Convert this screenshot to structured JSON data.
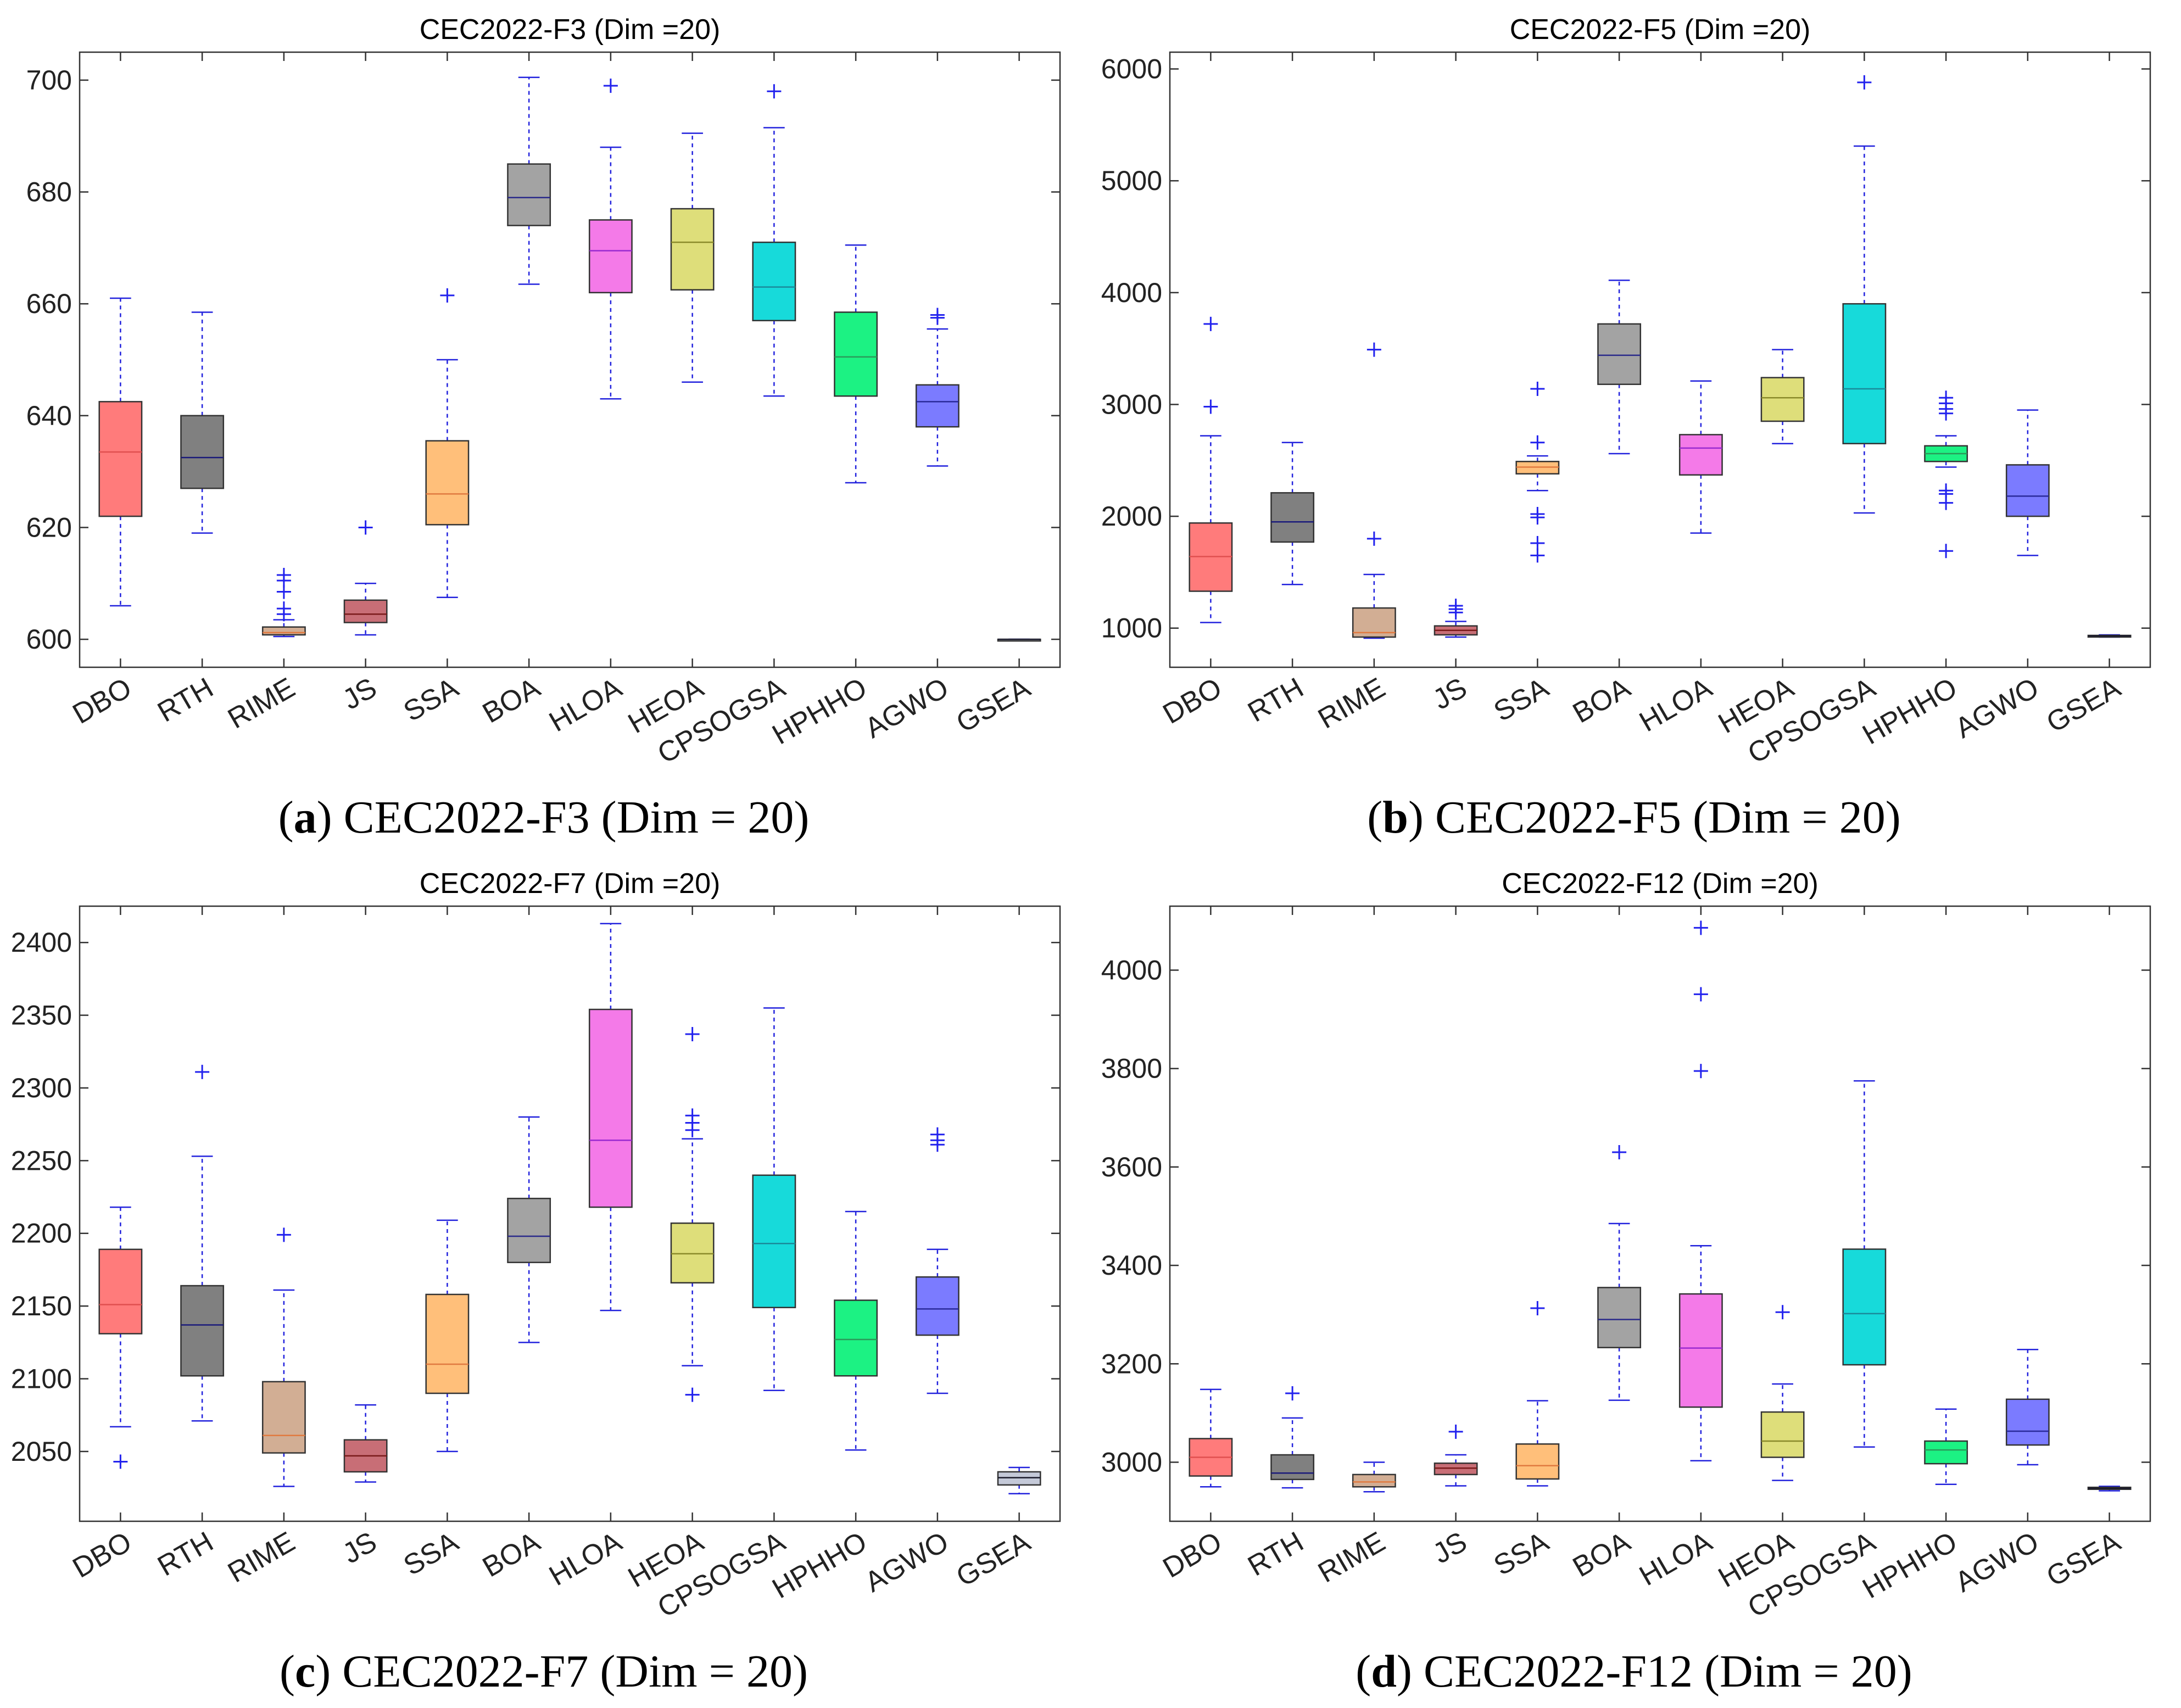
{
  "captions": [
    {
      "label": "a",
      "text": "CEC2022-F3 (Dim = 20)"
    },
    {
      "label": "b",
      "text": "CEC2022-F5 (Dim = 20)"
    },
    {
      "label": "c",
      "text": "CEC2022-F7 (Dim = 20)"
    },
    {
      "label": "d",
      "text": "CEC2022-F12 (Dim = 20)"
    }
  ],
  "chart_data": [
    {
      "type": "box",
      "title": "CEC2022-F3 (Dim =20)",
      "xlabel": "",
      "ylabel": "",
      "ylim": [
        595,
        705
      ],
      "yticks": [
        600,
        620,
        640,
        660,
        680,
        700
      ],
      "categories": [
        "DBO",
        "RTH",
        "RIME",
        "JS",
        "SSA",
        "BOA",
        "HLOA",
        "HEOA",
        "CPSOGSA",
        "HPHHO",
        "AGWO",
        "GSEA"
      ],
      "colors": [
        "#ff7b7b",
        "#808080",
        "#d2ae94",
        "#c86e76",
        "#ffbf7a",
        "#a3a3a3",
        "#f47ae8",
        "#dede7a",
        "#17dada",
        "#1cf283",
        "#7b7bff",
        "#c4c9d8"
      ],
      "median_colors": [
        "#e05050",
        "#1a1a7a",
        "#e07a40",
        "#7a1a1a",
        "#e07a40",
        "#2a2a8a",
        "#9a2ad0",
        "#8a8a2a",
        "#1a8a9a",
        "#2a9a5a",
        "#2a2a9a",
        "#1a1a2a"
      ],
      "boxes": [
        {
          "whisker_low": 606,
          "q1": 622,
          "median": 633.5,
          "q3": 642.5,
          "whisker_high": 661,
          "outliers": []
        },
        {
          "whisker_low": 619,
          "q1": 627,
          "median": 632.5,
          "q3": 640,
          "whisker_high": 658.5,
          "outliers": []
        },
        {
          "whisker_low": 600.5,
          "q1": 600.8,
          "median": 601.2,
          "q3": 602.2,
          "whisker_high": 603.5,
          "outliers": [
            604.5,
            605.5,
            608.5,
            610.5,
            611.5
          ]
        },
        {
          "whisker_low": 600.8,
          "q1": 603,
          "median": 604.5,
          "q3": 607,
          "whisker_high": 610,
          "outliers": [
            620
          ]
        },
        {
          "whisker_low": 607.5,
          "q1": 620.5,
          "median": 626,
          "q3": 635.5,
          "whisker_high": 650,
          "outliers": [
            661.5
          ]
        },
        {
          "whisker_low": 663.5,
          "q1": 674,
          "median": 679,
          "q3": 685,
          "whisker_high": 700.5,
          "outliers": []
        },
        {
          "whisker_low": 643,
          "q1": 662,
          "median": 669.5,
          "q3": 675,
          "whisker_high": 688,
          "outliers": [
            699
          ]
        },
        {
          "whisker_low": 646,
          "q1": 662.5,
          "median": 671,
          "q3": 677,
          "whisker_high": 690.5,
          "outliers": []
        },
        {
          "whisker_low": 643.5,
          "q1": 657,
          "median": 663,
          "q3": 671,
          "whisker_high": 691.5,
          "outliers": [
            698
          ]
        },
        {
          "whisker_low": 628,
          "q1": 643.5,
          "median": 650.5,
          "q3": 658.5,
          "whisker_high": 670.5,
          "outliers": []
        },
        {
          "whisker_low": 631,
          "q1": 638,
          "median": 642.5,
          "q3": 645.5,
          "whisker_high": 655.5,
          "outliers": [
            657.5,
            658
          ]
        },
        {
          "whisker_low": 600,
          "q1": 600,
          "median": 600,
          "q3": 600,
          "whisker_high": 600,
          "outliers": []
        }
      ]
    },
    {
      "type": "box",
      "title": "CEC2022-F5 (Dim =20)",
      "xlabel": "",
      "ylabel": "",
      "ylim": [
        650,
        6150
      ],
      "yticks": [
        1000,
        2000,
        3000,
        4000,
        5000,
        6000
      ],
      "categories": [
        "DBO",
        "RTH",
        "RIME",
        "JS",
        "SSA",
        "BOA",
        "HLOA",
        "HEOA",
        "CPSOGSA",
        "HPHHO",
        "AGWO",
        "GSEA"
      ],
      "colors": [
        "#ff7b7b",
        "#808080",
        "#d2ae94",
        "#c86e76",
        "#ffbf7a",
        "#a3a3a3",
        "#f47ae8",
        "#dede7a",
        "#17dada",
        "#1cf283",
        "#7b7bff",
        "#c4c9d8"
      ],
      "median_colors": [
        "#e05050",
        "#1a1a7a",
        "#e07a40",
        "#7a1a1a",
        "#e07a40",
        "#2a2a8a",
        "#9a2ad0",
        "#8a8a2a",
        "#1a8a9a",
        "#2a9a5a",
        "#2a2a9a",
        "#1a1a2a"
      ],
      "boxes": [
        {
          "whisker_low": 1050,
          "q1": 1330,
          "median": 1640,
          "q3": 1940,
          "whisker_high": 2720,
          "outliers": [
            2980,
            3720
          ]
        },
        {
          "whisker_low": 1390,
          "q1": 1770,
          "median": 1950,
          "q3": 2210,
          "whisker_high": 2660,
          "outliers": []
        },
        {
          "whisker_low": 910,
          "q1": 920,
          "median": 960,
          "q3": 1180,
          "whisker_high": 1480,
          "outliers": [
            1800,
            3490
          ]
        },
        {
          "whisker_low": 920,
          "q1": 940,
          "median": 980,
          "q3": 1020,
          "whisker_high": 1060,
          "outliers": [
            1140,
            1170,
            1200
          ]
        },
        {
          "whisker_low": 2230,
          "q1": 2380,
          "median": 2440,
          "q3": 2490,
          "whisker_high": 2540,
          "outliers": [
            1650,
            1760,
            1990,
            2020,
            2660,
            3140
          ]
        },
        {
          "whisker_low": 2560,
          "q1": 3180,
          "median": 3440,
          "q3": 3720,
          "whisker_high": 4110,
          "outliers": []
        },
        {
          "whisker_low": 1850,
          "q1": 2370,
          "median": 2610,
          "q3": 2730,
          "whisker_high": 3210,
          "outliers": []
        },
        {
          "whisker_low": 2650,
          "q1": 2850,
          "median": 3060,
          "q3": 3240,
          "whisker_high": 3490,
          "outliers": []
        },
        {
          "whisker_low": 2030,
          "q1": 2650,
          "median": 3140,
          "q3": 3900,
          "whisker_high": 5310,
          "outliers": [
            5880
          ]
        },
        {
          "whisker_low": 2440,
          "q1": 2490,
          "median": 2560,
          "q3": 2630,
          "whisker_high": 2720,
          "outliers": [
            1690,
            2120,
            2200,
            2230,
            2920,
            2960,
            3010,
            3060
          ]
        },
        {
          "whisker_low": 1650,
          "q1": 2000,
          "median": 2180,
          "q3": 2460,
          "whisker_high": 2950,
          "outliers": []
        },
        {
          "whisker_low": 920,
          "q1": 925,
          "median": 930,
          "q3": 935,
          "whisker_high": 940,
          "outliers": []
        }
      ]
    },
    {
      "type": "box",
      "title": "CEC2022-F7 (Dim =20)",
      "xlabel": "",
      "ylabel": "",
      "ylim": [
        2002,
        2425
      ],
      "yticks": [
        2050,
        2100,
        2150,
        2200,
        2250,
        2300,
        2350,
        2400
      ],
      "categories": [
        "DBO",
        "RTH",
        "RIME",
        "JS",
        "SSA",
        "BOA",
        "HLOA",
        "HEOA",
        "CPSOGSA",
        "HPHHO",
        "AGWO",
        "GSEA"
      ],
      "colors": [
        "#ff7b7b",
        "#808080",
        "#d2ae94",
        "#c86e76",
        "#ffbf7a",
        "#a3a3a3",
        "#f47ae8",
        "#dede7a",
        "#17dada",
        "#1cf283",
        "#7b7bff",
        "#c4c9d8"
      ],
      "median_colors": [
        "#e05050",
        "#1a1a7a",
        "#e07a40",
        "#7a1a1a",
        "#e07a40",
        "#2a2a8a",
        "#9a2ad0",
        "#8a8a2a",
        "#1a8a9a",
        "#2a9a5a",
        "#2a2a9a",
        "#1a1a2a"
      ],
      "boxes": [
        {
          "whisker_low": 2067,
          "q1": 2131,
          "median": 2151,
          "q3": 2189,
          "whisker_high": 2218,
          "outliers": [
            2043
          ]
        },
        {
          "whisker_low": 2071,
          "q1": 2102,
          "median": 2137,
          "q3": 2164,
          "whisker_high": 2253,
          "outliers": [
            2311
          ]
        },
        {
          "whisker_low": 2026,
          "q1": 2049,
          "median": 2061,
          "q3": 2098,
          "whisker_high": 2161,
          "outliers": [
            2199
          ]
        },
        {
          "whisker_low": 2029,
          "q1": 2036,
          "median": 2047,
          "q3": 2058,
          "whisker_high": 2082,
          "outliers": []
        },
        {
          "whisker_low": 2050,
          "q1": 2090,
          "median": 2110,
          "q3": 2158,
          "whisker_high": 2209,
          "outliers": []
        },
        {
          "whisker_low": 2125,
          "q1": 2180,
          "median": 2198,
          "q3": 2224,
          "whisker_high": 2280,
          "outliers": []
        },
        {
          "whisker_low": 2147,
          "q1": 2218,
          "median": 2264,
          "q3": 2354,
          "whisker_high": 2413,
          "outliers": []
        },
        {
          "whisker_low": 2109,
          "q1": 2166,
          "median": 2186,
          "q3": 2207,
          "whisker_high": 2265,
          "outliers": [
            2089,
            2271,
            2276,
            2281,
            2337
          ]
        },
        {
          "whisker_low": 2092,
          "q1": 2149,
          "median": 2193,
          "q3": 2240,
          "whisker_high": 2355,
          "outliers": []
        },
        {
          "whisker_low": 2051,
          "q1": 2102,
          "median": 2127,
          "q3": 2154,
          "whisker_high": 2215,
          "outliers": []
        },
        {
          "whisker_low": 2090,
          "q1": 2130,
          "median": 2148,
          "q3": 2170,
          "whisker_high": 2189,
          "outliers": [
            2261,
            2264,
            2268
          ]
        },
        {
          "whisker_low": 2021,
          "q1": 2027,
          "median": 2032,
          "q3": 2036,
          "whisker_high": 2039,
          "outliers": []
        }
      ]
    },
    {
      "type": "box",
      "title": "CEC2022-F12 (Dim =20)",
      "xlabel": "",
      "ylabel": "",
      "ylim": [
        2880,
        4130
      ],
      "yticks": [
        3000,
        3200,
        3400,
        3600,
        3800,
        4000
      ],
      "categories": [
        "DBO",
        "RTH",
        "RIME",
        "JS",
        "SSA",
        "BOA",
        "HLOA",
        "HEOA",
        "CPSOGSA",
        "HPHHO",
        "AGWO",
        "GSEA"
      ],
      "colors": [
        "#ff7b7b",
        "#808080",
        "#d2ae94",
        "#c86e76",
        "#ffbf7a",
        "#a3a3a3",
        "#f47ae8",
        "#dede7a",
        "#17dada",
        "#1cf283",
        "#7b7bff",
        "#c4c9d8"
      ],
      "median_colors": [
        "#e05050",
        "#1a1a7a",
        "#e07a40",
        "#7a1a1a",
        "#e07a40",
        "#2a2a8a",
        "#9a2ad0",
        "#8a8a2a",
        "#1a8a9a",
        "#2a9a5a",
        "#2a2a9a",
        "#1a1a2a"
      ],
      "boxes": [
        {
          "whisker_low": 2950,
          "q1": 2972,
          "median": 3010,
          "q3": 3048,
          "whisker_high": 3148,
          "outliers": []
        },
        {
          "whisker_low": 2948,
          "q1": 2965,
          "median": 2978,
          "q3": 3015,
          "whisker_high": 3090,
          "outliers": [
            3140
          ]
        },
        {
          "whisker_low": 2940,
          "q1": 2950,
          "median": 2960,
          "q3": 2975,
          "whisker_high": 3000,
          "outliers": []
        },
        {
          "whisker_low": 2952,
          "q1": 2975,
          "median": 2988,
          "q3": 2998,
          "whisker_high": 3015,
          "outliers": [
            3062
          ]
        },
        {
          "whisker_low": 2952,
          "q1": 2966,
          "median": 2993,
          "q3": 3037,
          "whisker_high": 3125,
          "outliers": [
            3313
          ]
        },
        {
          "whisker_low": 3126,
          "q1": 3233,
          "median": 3290,
          "q3": 3355,
          "whisker_high": 3485,
          "outliers": [
            3630
          ]
        },
        {
          "whisker_low": 3003,
          "q1": 3112,
          "median": 3232,
          "q3": 3342,
          "whisker_high": 3440,
          "outliers": [
            3795,
            3951,
            4086
          ]
        },
        {
          "whisker_low": 2963,
          "q1": 3010,
          "median": 3043,
          "q3": 3102,
          "whisker_high": 3159,
          "outliers": [
            3305
          ]
        },
        {
          "whisker_low": 3031,
          "q1": 3198,
          "median": 3302,
          "q3": 3433,
          "whisker_high": 3775,
          "outliers": []
        },
        {
          "whisker_low": 2955,
          "q1": 2997,
          "median": 3025,
          "q3": 3043,
          "whisker_high": 3108,
          "outliers": []
        },
        {
          "whisker_low": 2995,
          "q1": 3035,
          "median": 3063,
          "q3": 3128,
          "whisker_high": 3229,
          "outliers": []
        },
        {
          "whisker_low": 2942,
          "q1": 2945,
          "median": 2947,
          "q3": 2949,
          "whisker_high": 2951,
          "outliers": []
        }
      ]
    }
  ]
}
